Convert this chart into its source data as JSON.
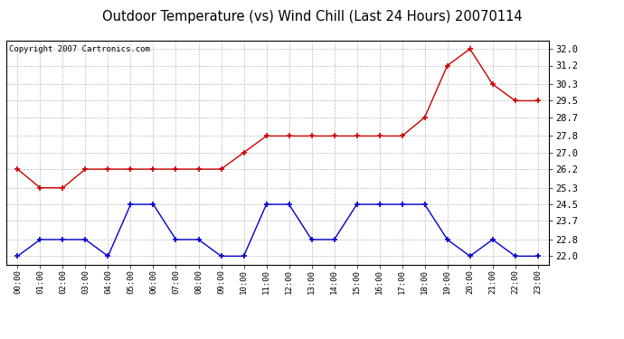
{
  "title": "Outdoor Temperature (vs) Wind Chill (Last 24 Hours) 20070114",
  "copyright": "Copyright 2007 Cartronics.com",
  "x_labels": [
    "00:00",
    "01:00",
    "02:00",
    "03:00",
    "04:00",
    "05:00",
    "06:00",
    "07:00",
    "08:00",
    "09:00",
    "10:00",
    "11:00",
    "12:00",
    "13:00",
    "14:00",
    "15:00",
    "16:00",
    "17:00",
    "18:00",
    "19:00",
    "20:00",
    "21:00",
    "22:00",
    "23:00"
  ],
  "red_data": [
    26.2,
    25.3,
    25.3,
    26.2,
    26.2,
    26.2,
    26.2,
    26.2,
    26.2,
    26.2,
    27.0,
    27.8,
    27.8,
    27.8,
    27.8,
    27.8,
    27.8,
    27.8,
    28.7,
    31.2,
    32.0,
    30.3,
    29.5,
    29.5
  ],
  "blue_data": [
    22.0,
    22.8,
    22.8,
    22.8,
    22.0,
    24.5,
    24.5,
    22.8,
    22.8,
    22.0,
    22.0,
    24.5,
    24.5,
    22.8,
    22.8,
    24.5,
    24.5,
    24.5,
    24.5,
    22.8,
    22.0,
    22.8,
    22.0,
    22.0
  ],
  "ylim_min": 21.6,
  "ylim_max": 32.4,
  "yticks": [
    22.0,
    22.8,
    23.7,
    24.5,
    25.3,
    26.2,
    27.0,
    27.8,
    28.7,
    29.5,
    30.3,
    31.2,
    32.0
  ],
  "red_color": "#cc0000",
  "blue_color": "#0000cc",
  "grid_color": "#bbbbbb",
  "background_color": "#ffffff",
  "title_fontsize": 10.5,
  "copyright_fontsize": 6.5,
  "tick_fontsize": 7.5,
  "xtick_fontsize": 6.5
}
